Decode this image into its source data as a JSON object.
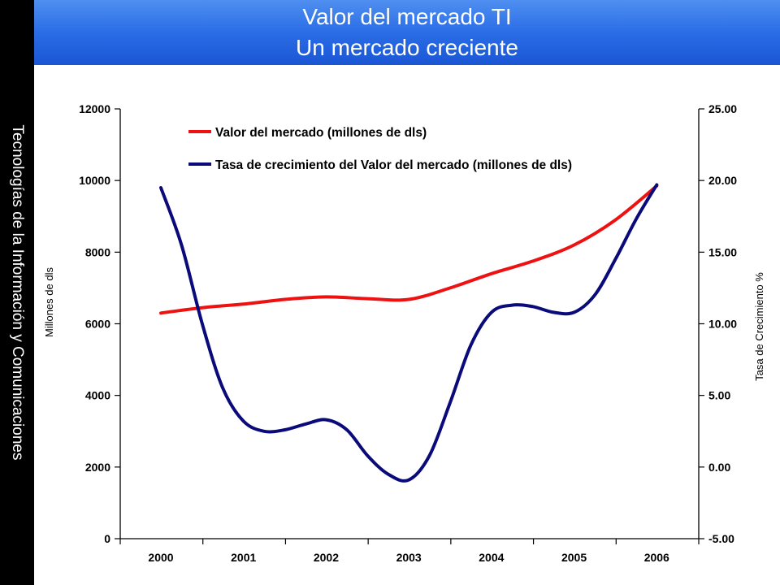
{
  "header": {
    "title_line1": "Valor del mercado TI",
    "title_line2": "Un mercado creciente"
  },
  "sidebar": {
    "text": "Tecnologías de la Información y Comunicaciones"
  },
  "chart_data": {
    "type": "line",
    "title": "",
    "xlabel": "",
    "ylabel_left": "Millones de dls",
    "ylabel_right": "Tasa de Crecimiento %",
    "categories": [
      "2000",
      "2001",
      "2002",
      "2003",
      "2004",
      "2005",
      "2006"
    ],
    "ylim_left": [
      0,
      12000
    ],
    "ylim_right": [
      -5,
      25
    ],
    "yticks_left": [
      "0",
      "2000",
      "4000",
      "6000",
      "8000",
      "10000",
      "12000"
    ],
    "yticks_right": [
      "-5.00",
      "0.00",
      "5.00",
      "10.00",
      "15.00",
      "20.00",
      "25.00"
    ],
    "grid": false,
    "legend_position": "top",
    "series": [
      {
        "name": "Valor del mercado (millones de dls)",
        "axis": "left",
        "color": "#ee1111",
        "x": [
          2000,
          2000.5,
          2001,
          2001.5,
          2002,
          2002.5,
          2003,
          2003.5,
          2004,
          2004.5,
          2005,
          2005.5,
          2006
        ],
        "values": [
          6300,
          6450,
          6550,
          6680,
          6750,
          6700,
          6680,
          7000,
          7400,
          7750,
          8200,
          8900,
          9850
        ]
      },
      {
        "name": "Tasa de crecimiento del Valor del mercado (millones de dls)",
        "axis": "right",
        "color": "#0a0a7a",
        "x": [
          2000,
          2000.25,
          2000.5,
          2000.75,
          2001,
          2001.25,
          2001.5,
          2001.75,
          2002,
          2002.25,
          2002.5,
          2002.75,
          2003,
          2003.25,
          2003.5,
          2003.75,
          2004,
          2004.25,
          2004.5,
          2004.75,
          2005,
          2005.25,
          2005.5,
          2005.75,
          2006
        ],
        "values": [
          19.5,
          15.5,
          10.0,
          5.5,
          3.2,
          2.5,
          2.6,
          3.0,
          3.3,
          2.6,
          0.8,
          -0.5,
          -0.9,
          0.8,
          4.5,
          8.5,
          10.8,
          11.3,
          11.2,
          10.8,
          10.8,
          12.0,
          14.5,
          17.3,
          19.7
        ]
      }
    ]
  }
}
